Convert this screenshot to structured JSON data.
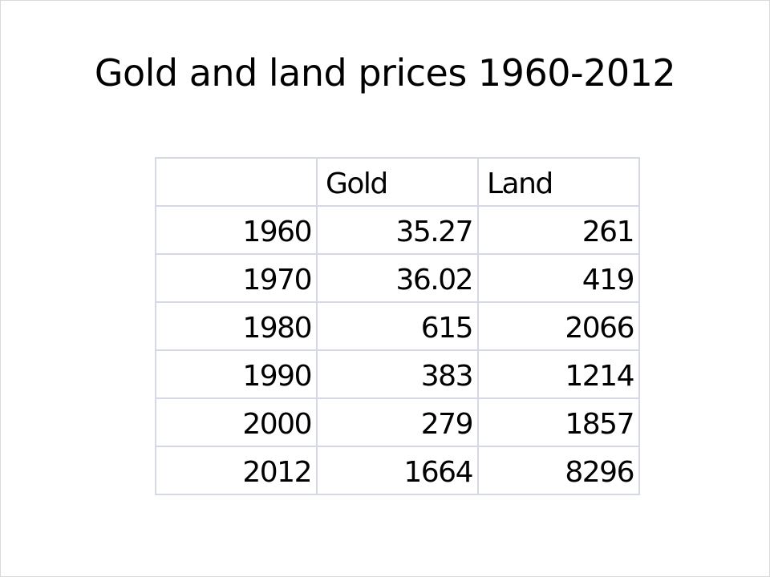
{
  "slide": {
    "title": "Gold and land prices 1960-2012"
  },
  "table": {
    "headers": [
      "",
      "Gold",
      "Land"
    ],
    "rows": [
      [
        "1960",
        "35.27",
        "261"
      ],
      [
        "1970",
        "36.02",
        "419"
      ],
      [
        "1980",
        "615",
        "2066"
      ],
      [
        "1990",
        "383",
        "1214"
      ],
      [
        "2000",
        "279",
        "1857"
      ],
      [
        "2012",
        "1664",
        "8296"
      ]
    ]
  },
  "chart_data": {
    "type": "table",
    "title": "Gold and land prices 1960-2012",
    "columns": [
      "",
      "Gold",
      "Land"
    ],
    "categories": [
      "1960",
      "1970",
      "1980",
      "1990",
      "2000",
      "2012"
    ],
    "series": [
      {
        "name": "Gold",
        "values": [
          35.27,
          36.02,
          615,
          383,
          279,
          1664
        ]
      },
      {
        "name": "Land",
        "values": [
          261,
          419,
          2066,
          1214,
          1857,
          8296
        ]
      }
    ]
  }
}
